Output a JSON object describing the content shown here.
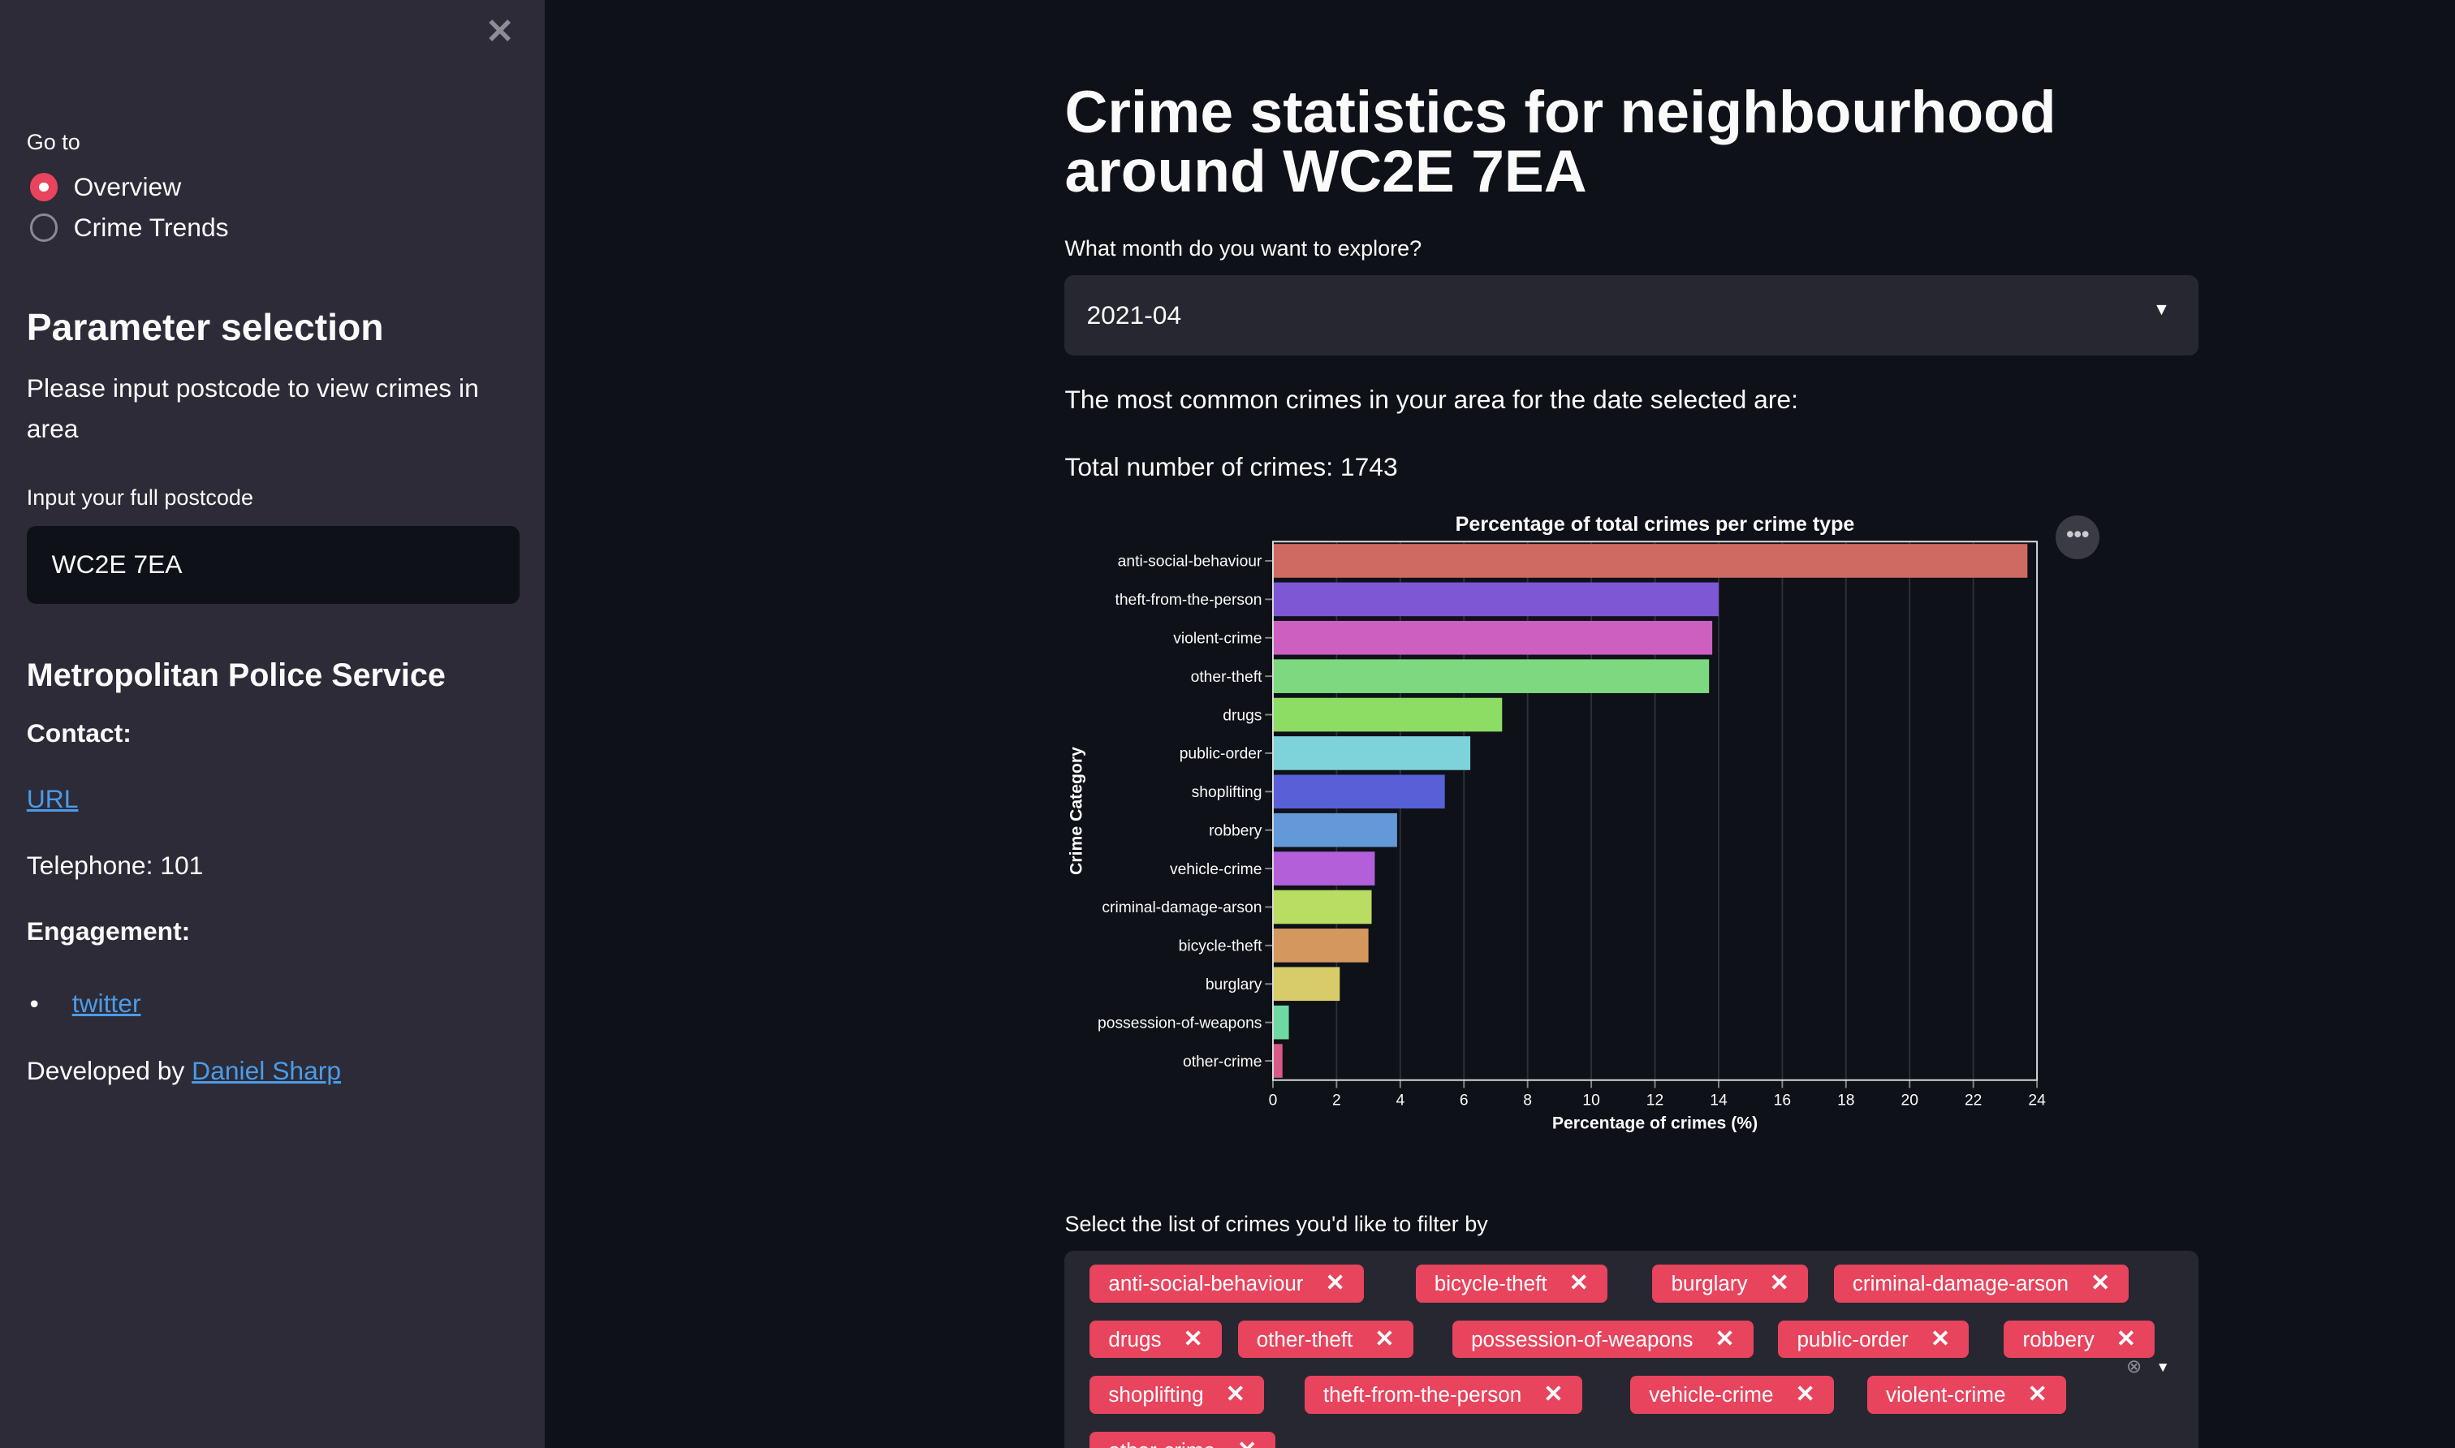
{
  "sidebar": {
    "close_icon": "close-icon",
    "goto_label": "Go to",
    "nav": [
      {
        "label": "Overview",
        "selected": true
      },
      {
        "label": "Crime Trends",
        "selected": false
      }
    ],
    "param_heading": "Parameter selection",
    "param_text": "Please input postcode to view crimes in area",
    "postcode_label": "Input your full postcode",
    "postcode_value": "WC2E 7EA",
    "police_heading": "Metropolitan Police Service",
    "contact_label": "Contact:",
    "url_link": "URL",
    "telephone": "Telephone: 101",
    "engagement_label": "Engagement:",
    "engagement_links": [
      "twitter"
    ],
    "developed_by": "Developed by",
    "developer_link": "Daniel Sharp"
  },
  "main": {
    "title": "Crime statistics for neighbourhood around WC2E 7EA",
    "month_label": "What month do you want to explore?",
    "month_value": "2021-04",
    "common_text": "The most common crimes in your area for the date selected are:",
    "total_text": "Total number of crimes: 1743",
    "filter_label": "Select the list of crimes you'd like to filter by",
    "filter_tags": [
      "anti-social-behaviour",
      "bicycle-theft",
      "burglary",
      "criminal-damage-arson",
      "drugs",
      "other-theft",
      "possession-of-weapons",
      "public-order",
      "robbery",
      "shoplifting",
      "theft-from-the-person",
      "vehicle-crime",
      "violent-crime",
      "other-crime"
    ],
    "accent_color": "#e8445d"
  },
  "chart_data": {
    "type": "bar",
    "orientation": "horizontal",
    "title": "Percentage of total crimes per crime type",
    "xlabel": "Percentage of crimes (%)",
    "ylabel": "Crime Category",
    "xlim": [
      0,
      24
    ],
    "xticks": [
      0,
      2,
      4,
      6,
      8,
      10,
      12,
      14,
      16,
      18,
      20,
      22,
      24
    ],
    "grid": true,
    "categories": [
      "anti-social-behaviour",
      "theft-from-the-person",
      "violent-crime",
      "other-theft",
      "drugs",
      "public-order",
      "shoplifting",
      "robbery",
      "vehicle-crime",
      "criminal-damage-arson",
      "bicycle-theft",
      "burglary",
      "possession-of-weapons",
      "other-crime"
    ],
    "values": [
      23.7,
      14.0,
      13.8,
      13.7,
      7.2,
      6.2,
      5.4,
      3.9,
      3.2,
      3.1,
      3.0,
      2.1,
      0.5,
      0.3
    ],
    "colors": [
      "#cf6a62",
      "#7d57d4",
      "#cc5fc0",
      "#7ed87f",
      "#8ddd64",
      "#7dd3d9",
      "#5760d6",
      "#6399d8",
      "#b35fd9",
      "#b9dd62",
      "#d4985f",
      "#d8cc6a",
      "#6fd9a3",
      "#d85a87"
    ]
  }
}
